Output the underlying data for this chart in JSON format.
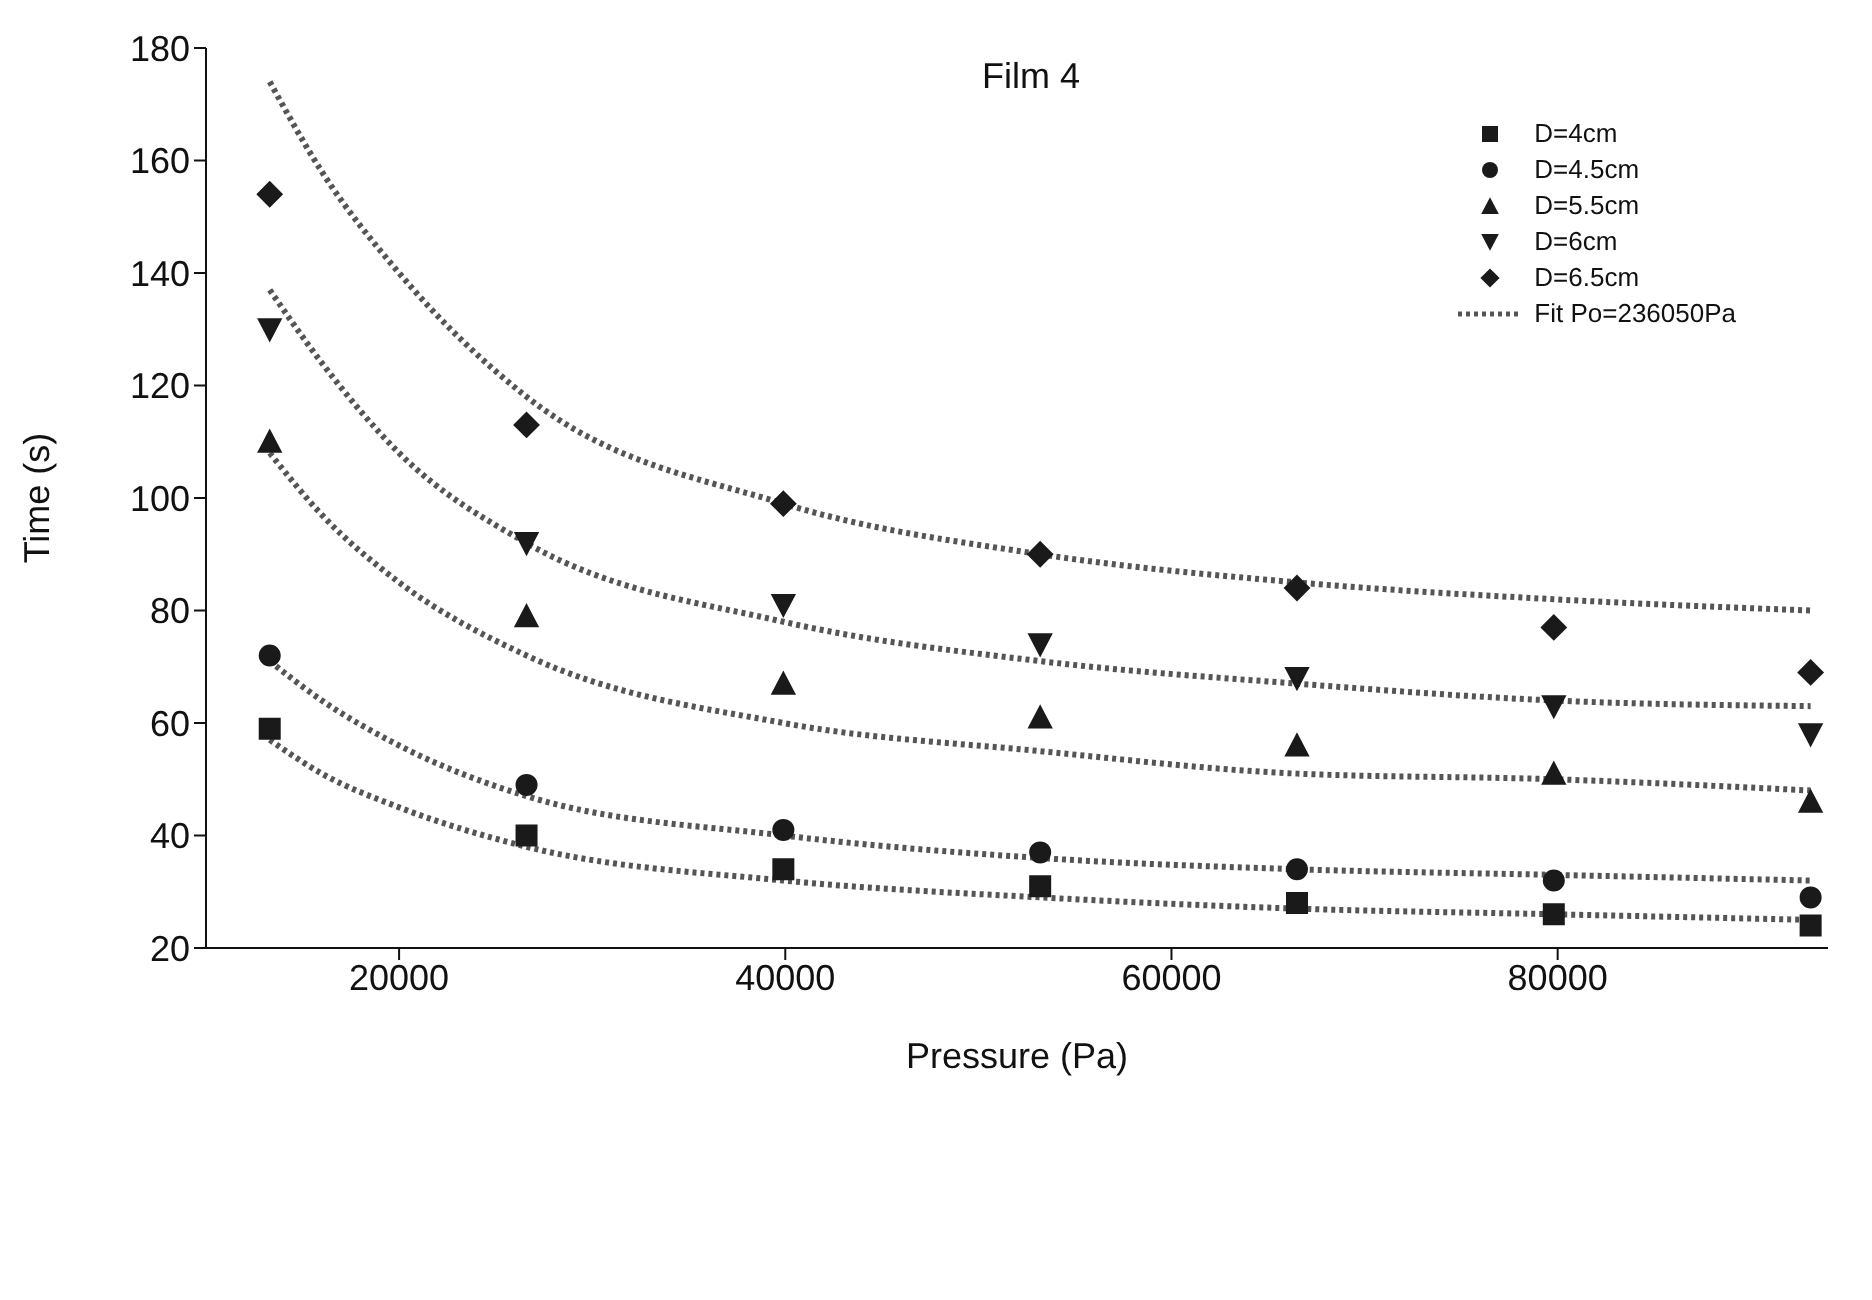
{
  "chart_data": {
    "type": "scatter",
    "title": "Film 4",
    "xlabel": "Pressure (Pa)",
    "ylabel": "Time (s)",
    "xlim": [
      10000,
      94000
    ],
    "xticks": [
      20000,
      40000,
      60000,
      80000
    ],
    "ylim": [
      20,
      180
    ],
    "yticks": [
      20,
      40,
      60,
      80,
      100,
      120,
      140,
      160,
      180
    ],
    "grid": false,
    "legend": "top right",
    "x": [
      13300,
      26600,
      39900,
      53200,
      66500,
      79800,
      93100
    ],
    "series": [
      {
        "name": "D=4cm",
        "color": "#1a1a1a",
        "marker": "square",
        "values": [
          59,
          40,
          34,
          31,
          28,
          26,
          24
        ]
      },
      {
        "name": "D=4.5cm",
        "color": "#1a1a1a",
        "marker": "circle",
        "values": [
          72,
          49,
          41,
          37,
          34,
          32,
          29
        ]
      },
      {
        "name": "D=5.5cm",
        "color": "#1a1a1a",
        "marker": "triangle",
        "values": [
          110,
          79,
          67,
          61,
          56,
          51,
          46
        ]
      },
      {
        "name": "D=6cm",
        "color": "#1a1a1a",
        "marker": "triangle_down",
        "values": [
          130,
          92,
          81,
          74,
          68,
          63,
          58
        ]
      },
      {
        "name": "D=6.5cm",
        "color": "#1a1a1a",
        "marker": "diamond",
        "values": [
          154,
          113,
          99,
          90,
          84,
          77,
          69
        ]
      },
      {
        "name": "Fit Po=236050Pa",
        "type": "line",
        "line_style": "dotted",
        "marker": "none",
        "color": "#555555",
        "x": [
          13300,
          16000,
          20000,
          26600,
          39900,
          53200,
          66500,
          79800,
          93100
        ],
        "values": [
          57,
          51,
          45,
          38,
          32,
          29,
          27,
          26,
          25
        ]
      },
      {
        "type": "line",
        "line_style": "dotted",
        "marker": "none",
        "color": "#555555",
        "x": [
          13300,
          16000,
          20000,
          26600,
          39900,
          53200,
          66500,
          79800,
          93100
        ],
        "values": [
          71,
          64,
          56,
          47,
          40,
          36,
          34,
          33,
          32
        ]
      },
      {
        "type": "line",
        "line_style": "dotted",
        "marker": "none",
        "color": "#555555",
        "x": [
          13300,
          16000,
          20000,
          26600,
          39900,
          53200,
          66500,
          79800,
          93100
        ],
        "values": [
          108,
          97,
          85,
          72,
          60,
          55,
          51,
          50,
          48
        ]
      },
      {
        "type": "line",
        "line_style": "dotted",
        "marker": "none",
        "color": "#555555",
        "x": [
          13300,
          16000,
          20000,
          26600,
          39900,
          53200,
          66500,
          79800,
          93100
        ],
        "values": [
          137,
          124,
          108,
          92,
          78,
          71,
          67,
          64,
          63
        ]
      },
      {
        "type": "line",
        "line_style": "dotted",
        "marker": "none",
        "color": "#555555",
        "x": [
          13300,
          16000,
          20000,
          26600,
          39900,
          53200,
          66500,
          79800,
          93100
        ],
        "values": [
          174,
          158,
          140,
          118,
          99,
          90,
          85,
          82,
          80
        ]
      }
    ]
  }
}
